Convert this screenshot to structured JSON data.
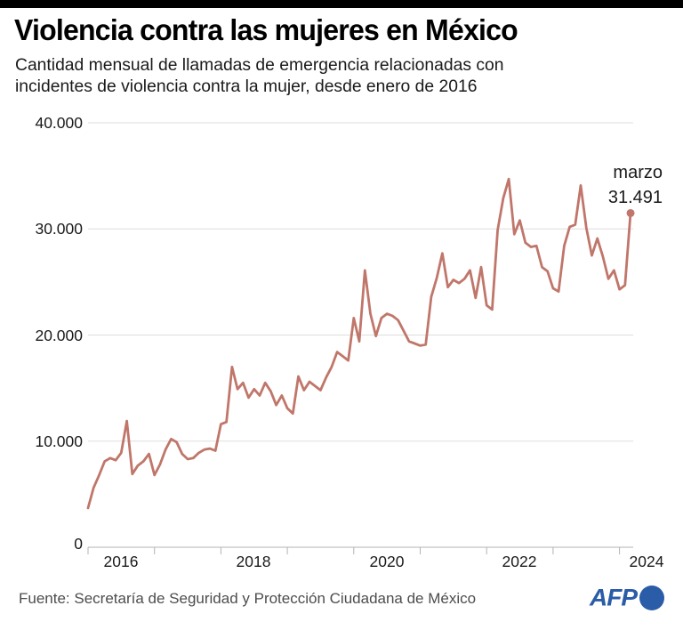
{
  "header": {
    "title": "Violencia contra las mujeres en México",
    "subtitle_line1": "Cantidad mensual de llamadas de emergencia relacionadas con",
    "subtitle_line2": "incidentes de violencia contra la mujer, desde enero de 2016"
  },
  "footer": {
    "source": "Fuente: Secretaría de Seguridad y Protección Ciudadana de México",
    "afp_logo_text": "AFP"
  },
  "colors": {
    "line": "#c0766a",
    "grid": "#dddddd",
    "axis": "#b3b3b3",
    "top_bar": "#000000",
    "afp_blue": "#2a5ca8"
  },
  "chart_data": {
    "type": "line",
    "title": "Cantidad mensual de llamadas de emergencia relacionadas con incidentes de violencia contra la mujer, desde enero de 2016",
    "start_month": "2016-01",
    "end_month": "2024-03",
    "ylim": [
      0,
      40000
    ],
    "grid": "horizontal",
    "y_tick_values": [
      40000,
      30000,
      20000,
      10000,
      0
    ],
    "y_tick_labels": [
      "40.000",
      "30.000",
      "20.000",
      "10.000",
      "0"
    ],
    "x_tick_labels": [
      "2016",
      "2018",
      "2020",
      "2022",
      "2024"
    ],
    "annotation": {
      "label": "marzo",
      "value_label": "31.491",
      "value": 31491,
      "month": "2024-03"
    },
    "series": [
      {
        "name": "llamadas de emergencia",
        "monthly_values": [
          3700,
          5600,
          6800,
          8100,
          8400,
          8200,
          8900,
          11900,
          6900,
          7700,
          8100,
          8800,
          6800,
          7800,
          9200,
          10200,
          9900,
          8800,
          8300,
          8400,
          8900,
          9200,
          9300,
          9100,
          11600,
          11800,
          17000,
          14900,
          15500,
          14100,
          14900,
          14300,
          15500,
          14700,
          13400,
          14300,
          13100,
          12600,
          16100,
          14800,
          15600,
          15200,
          14800,
          16000,
          17000,
          18400,
          18000,
          17600,
          21600,
          19400,
          26100,
          22000,
          19900,
          21600,
          22000,
          21800,
          21400,
          20400,
          19400,
          19200,
          19000,
          19100,
          23600,
          25400,
          27700,
          24500,
          25200,
          24900,
          25300,
          26100,
          23500,
          26400,
          22800,
          22400,
          29900,
          32900,
          34700,
          29500,
          30800,
          28700,
          28300,
          28400,
          26400,
          26000,
          24400,
          24100,
          28400,
          30200,
          30400,
          34100,
          30100,
          27500,
          29100,
          27400,
          25300,
          26100,
          24300,
          24700,
          31491
        ]
      }
    ]
  }
}
